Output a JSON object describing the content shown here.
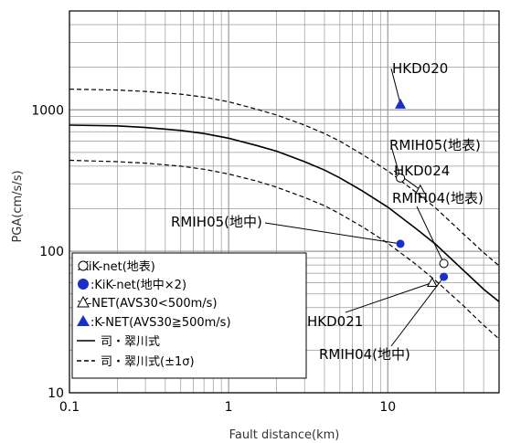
{
  "chart_data": {
    "type": "scatter",
    "xlabel": "Fault distance(km)",
    "ylabel": "PGA(cm/s/s)",
    "x_scale": "log",
    "y_scale": "log",
    "xlim": [
      0.1,
      50
    ],
    "ylim": [
      10,
      5000
    ],
    "grid": true,
    "x_ticks": [
      {
        "value": 0.1,
        "label": "0.1"
      },
      {
        "value": 1,
        "label": "1"
      },
      {
        "value": 10,
        "label": "10"
      }
    ],
    "y_ticks": [
      {
        "value": 10,
        "label": "10"
      },
      {
        "value": 100,
        "label": "100"
      },
      {
        "value": 1000,
        "label": "1000"
      }
    ],
    "legend": {
      "placement": "bottom-left",
      "entries": [
        {
          "symbol": "circle-open",
          "label": "○:KiK-net(地表)"
        },
        {
          "symbol": "circle-filled",
          "label": ":KiK-net(地中×2)"
        },
        {
          "symbol": "triangle-open",
          "label": "△:K-NET(AVS30<500m/s)"
        },
        {
          "symbol": "triangle-filled",
          "label": ":K-NET(AVS30≧500m/s)"
        },
        {
          "symbol": "line-solid",
          "label": "司・翠川式"
        },
        {
          "symbol": "line-dashed",
          "label": "司・翠川式(±1σ)"
        }
      ]
    },
    "series": [
      {
        "name": "KiK-net(地表)",
        "marker": "circle-open",
        "color": "#000000",
        "points": [
          {
            "x": 12.0,
            "y": 330
          },
          {
            "x": 22.5,
            "y": 82
          }
        ]
      },
      {
        "name": "KiK-net(地中×2)",
        "marker": "circle-filled",
        "color": "#1a2ec8",
        "points": [
          {
            "x": 12.0,
            "y": 113
          },
          {
            "x": 22.5,
            "y": 66
          }
        ]
      },
      {
        "name": "K-NET(AVS30<500m/s)",
        "marker": "triangle-open",
        "color": "#000000",
        "points": [
          {
            "x": 16.0,
            "y": 272
          },
          {
            "x": 19.0,
            "y": 60
          }
        ]
      },
      {
        "name": "K-NET(AVS30≧500m/s)",
        "marker": "triangle-filled",
        "color": "#1a2ec8",
        "points": [
          {
            "x": 12.0,
            "y": 1100
          }
        ]
      }
    ],
    "curves": [
      {
        "name": "司・翠川式",
        "style": "solid",
        "points": [
          [
            0.1,
            780
          ],
          [
            0.2,
            770
          ],
          [
            0.3,
            750
          ],
          [
            0.5,
            715
          ],
          [
            0.7,
            680
          ],
          [
            1,
            630
          ],
          [
            1.5,
            560
          ],
          [
            2,
            510
          ],
          [
            3,
            430
          ],
          [
            4,
            375
          ],
          [
            5,
            330
          ],
          [
            7,
            265
          ],
          [
            10,
            205
          ],
          [
            15,
            145
          ],
          [
            20,
            112
          ],
          [
            30,
            73
          ],
          [
            40,
            54
          ],
          [
            50,
            44
          ]
        ]
      },
      {
        "name": "司・翠川式(+1σ)",
        "style": "dashed",
        "points": [
          [
            0.1,
            1400
          ],
          [
            0.2,
            1380
          ],
          [
            0.3,
            1350
          ],
          [
            0.5,
            1290
          ],
          [
            0.7,
            1230
          ],
          [
            1,
            1140
          ],
          [
            1.5,
            1010
          ],
          [
            2,
            920
          ],
          [
            3,
            780
          ],
          [
            4,
            680
          ],
          [
            5,
            600
          ],
          [
            7,
            480
          ],
          [
            10,
            370
          ],
          [
            15,
            262
          ],
          [
            20,
            202
          ],
          [
            30,
            132
          ],
          [
            40,
            98
          ],
          [
            50,
            79
          ]
        ]
      },
      {
        "name": "司・翠川式(-1σ)",
        "style": "dashed",
        "points": [
          [
            0.1,
            440
          ],
          [
            0.2,
            430
          ],
          [
            0.3,
            420
          ],
          [
            0.5,
            400
          ],
          [
            0.7,
            380
          ],
          [
            1,
            352
          ],
          [
            1.5,
            314
          ],
          [
            2,
            284
          ],
          [
            3,
            240
          ],
          [
            4,
            210
          ],
          [
            5,
            184
          ],
          [
            7,
            148
          ],
          [
            10,
            114
          ],
          [
            15,
            81
          ],
          [
            20,
            62
          ],
          [
            30,
            41
          ],
          [
            40,
            30
          ],
          [
            50,
            24
          ]
        ]
      }
    ],
    "annotations": [
      {
        "text": "HKD020",
        "x": 12.0,
        "y": 1100
      },
      {
        "text": "RMIH05(地表)",
        "x": 12.0,
        "y": 330
      },
      {
        "text": "HKD024",
        "x": 16.0,
        "y": 272
      },
      {
        "text": "RMIH04(地表)",
        "x": 22.5,
        "y": 82
      },
      {
        "text": "RMIH05(地中)",
        "x": 12.0,
        "y": 113
      },
      {
        "text": "HKD021",
        "x": 19.0,
        "y": 60
      },
      {
        "text": "RMIH04(地中)",
        "x": 22.5,
        "y": 66
      }
    ]
  }
}
